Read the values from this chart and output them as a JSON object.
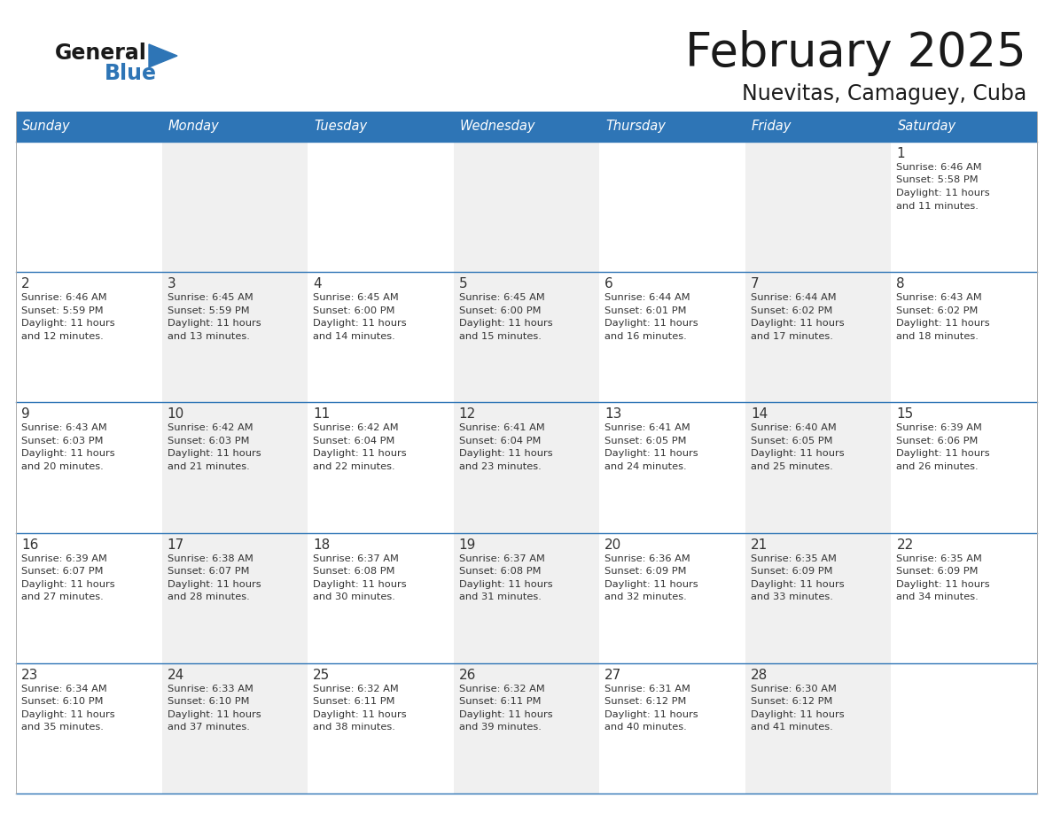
{
  "title": "February 2025",
  "subtitle": "Nuevitas, Camaguey, Cuba",
  "header_bg_color": "#2E75B6",
  "header_text_color": "#FFFFFF",
  "cell_bg_white": "#FFFFFF",
  "cell_bg_gray": "#F0F0F0",
  "day_number_color": "#333333",
  "info_text_color": "#333333",
  "border_color": "#2E75B6",
  "days_of_week": [
    "Sunday",
    "Monday",
    "Tuesday",
    "Wednesday",
    "Thursday",
    "Friday",
    "Saturday"
  ],
  "calendar_data": [
    [
      null,
      null,
      null,
      null,
      null,
      null,
      {
        "day": "1",
        "sunrise": "6:46 AM",
        "sunset": "5:58 PM",
        "daylight": "11 hours and 11 minutes."
      }
    ],
    [
      {
        "day": "2",
        "sunrise": "6:46 AM",
        "sunset": "5:59 PM",
        "daylight": "11 hours and 12 minutes."
      },
      {
        "day": "3",
        "sunrise": "6:45 AM",
        "sunset": "5:59 PM",
        "daylight": "11 hours and 13 minutes."
      },
      {
        "day": "4",
        "sunrise": "6:45 AM",
        "sunset": "6:00 PM",
        "daylight": "11 hours and 14 minutes."
      },
      {
        "day": "5",
        "sunrise": "6:45 AM",
        "sunset": "6:00 PM",
        "daylight": "11 hours and 15 minutes."
      },
      {
        "day": "6",
        "sunrise": "6:44 AM",
        "sunset": "6:01 PM",
        "daylight": "11 hours and 16 minutes."
      },
      {
        "day": "7",
        "sunrise": "6:44 AM",
        "sunset": "6:02 PM",
        "daylight": "11 hours and 17 minutes."
      },
      {
        "day": "8",
        "sunrise": "6:43 AM",
        "sunset": "6:02 PM",
        "daylight": "11 hours and 18 minutes."
      }
    ],
    [
      {
        "day": "9",
        "sunrise": "6:43 AM",
        "sunset": "6:03 PM",
        "daylight": "11 hours and 20 minutes."
      },
      {
        "day": "10",
        "sunrise": "6:42 AM",
        "sunset": "6:03 PM",
        "daylight": "11 hours and 21 minutes."
      },
      {
        "day": "11",
        "sunrise": "6:42 AM",
        "sunset": "6:04 PM",
        "daylight": "11 hours and 22 minutes."
      },
      {
        "day": "12",
        "sunrise": "6:41 AM",
        "sunset": "6:04 PM",
        "daylight": "11 hours and 23 minutes."
      },
      {
        "day": "13",
        "sunrise": "6:41 AM",
        "sunset": "6:05 PM",
        "daylight": "11 hours and 24 minutes."
      },
      {
        "day": "14",
        "sunrise": "6:40 AM",
        "sunset": "6:05 PM",
        "daylight": "11 hours and 25 minutes."
      },
      {
        "day": "15",
        "sunrise": "6:39 AM",
        "sunset": "6:06 PM",
        "daylight": "11 hours and 26 minutes."
      }
    ],
    [
      {
        "day": "16",
        "sunrise": "6:39 AM",
        "sunset": "6:07 PM",
        "daylight": "11 hours and 27 minutes."
      },
      {
        "day": "17",
        "sunrise": "6:38 AM",
        "sunset": "6:07 PM",
        "daylight": "11 hours and 28 minutes."
      },
      {
        "day": "18",
        "sunrise": "6:37 AM",
        "sunset": "6:08 PM",
        "daylight": "11 hours and 30 minutes."
      },
      {
        "day": "19",
        "sunrise": "6:37 AM",
        "sunset": "6:08 PM",
        "daylight": "11 hours and 31 minutes."
      },
      {
        "day": "20",
        "sunrise": "6:36 AM",
        "sunset": "6:09 PM",
        "daylight": "11 hours and 32 minutes."
      },
      {
        "day": "21",
        "sunrise": "6:35 AM",
        "sunset": "6:09 PM",
        "daylight": "11 hours and 33 minutes."
      },
      {
        "day": "22",
        "sunrise": "6:35 AM",
        "sunset": "6:09 PM",
        "daylight": "11 hours and 34 minutes."
      }
    ],
    [
      {
        "day": "23",
        "sunrise": "6:34 AM",
        "sunset": "6:10 PM",
        "daylight": "11 hours and 35 minutes."
      },
      {
        "day": "24",
        "sunrise": "6:33 AM",
        "sunset": "6:10 PM",
        "daylight": "11 hours and 37 minutes."
      },
      {
        "day": "25",
        "sunrise": "6:32 AM",
        "sunset": "6:11 PM",
        "daylight": "11 hours and 38 minutes."
      },
      {
        "day": "26",
        "sunrise": "6:32 AM",
        "sunset": "6:11 PM",
        "daylight": "11 hours and 39 minutes."
      },
      {
        "day": "27",
        "sunrise": "6:31 AM",
        "sunset": "6:12 PM",
        "daylight": "11 hours and 40 minutes."
      },
      {
        "day": "28",
        "sunrise": "6:30 AM",
        "sunset": "6:12 PM",
        "daylight": "11 hours and 41 minutes."
      },
      null
    ]
  ],
  "logo_general_color": "#1a1a1a",
  "logo_blue_color": "#2E75B6",
  "figsize": [
    11.88,
    9.18
  ],
  "dpi": 100
}
